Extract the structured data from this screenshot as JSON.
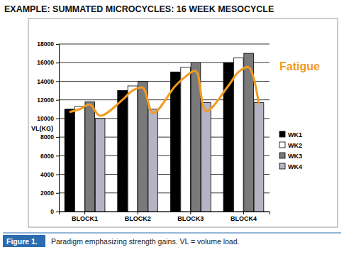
{
  "chart_data": {
    "type": "bar",
    "title": "EXAMPLE: SUMMATED MICROCYCLES: 16 WEEK MESOCYCLE",
    "y_label": "VL(KG)",
    "categories": [
      "BLOCK1",
      "BLOCK2",
      "BLOCK3",
      "BLOCK4"
    ],
    "series": [
      {
        "name": "WK1",
        "color": "#000000",
        "values": [
          11000,
          13000,
          15000,
          16000
        ]
      },
      {
        "name": "WK2",
        "color": "#ffffff",
        "values": [
          11300,
          13500,
          15500,
          16500
        ]
      },
      {
        "name": "WK3",
        "color": "#7a7a7a",
        "values": [
          11800,
          14000,
          16000,
          17000
        ]
      },
      {
        "name": "WK4",
        "color": "#b4b4c4",
        "values": [
          10000,
          11000,
          11700,
          11700
        ]
      },
      {
        "name": "Fatigue",
        "type": "line",
        "color": "#f39a1e",
        "x": [
          1,
          2,
          3,
          4,
          5,
          6,
          7,
          8,
          9,
          10,
          11,
          12,
          13,
          14,
          15,
          16
        ],
        "values": [
          10700,
          11000,
          11500,
          10300,
          12000,
          13000,
          13300,
          10600,
          13500,
          14500,
          15100,
          10800,
          13500,
          15000,
          15500,
          11500
        ]
      }
    ],
    "ylim": [
      0,
      18000
    ],
    "yticks": [
      0,
      2000,
      4000,
      6000,
      8000,
      10000,
      12000,
      14000,
      16000,
      18000
    ],
    "grid": true,
    "legend": "right"
  },
  "figure": {
    "label": "Figure 1.",
    "caption": "Paradigm emphasizing strength gains. VL = volume load."
  }
}
